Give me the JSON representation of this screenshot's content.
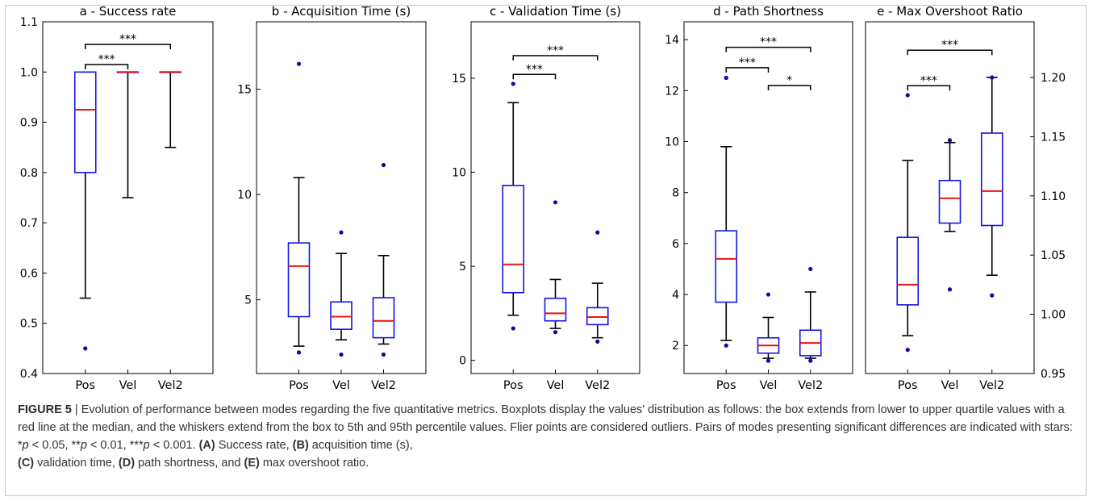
{
  "chart_data": [
    {
      "type": "box",
      "title": "a - Success rate",
      "categories": [
        "Pos",
        "Vel",
        "Vel2"
      ],
      "y_axis_side": "left",
      "ylim": [
        0.4,
        1.1
      ],
      "yticks": [
        0.4,
        0.5,
        0.6,
        0.7,
        0.8,
        0.9,
        1.0,
        1.1
      ],
      "ytick_labels": [
        "0.4",
        "0.5",
        "0.6",
        "0.7",
        "0.8",
        "0.9",
        "1.0",
        "1.1"
      ],
      "boxes": [
        {
          "whislo": 0.55,
          "q1": 0.8,
          "med": 0.925,
          "q3": 1.0,
          "whishi": 1.0,
          "fliers": [
            0.45
          ]
        },
        {
          "whislo": 0.75,
          "q1": 1.0,
          "med": 1.0,
          "q3": 1.0,
          "whishi": 1.0,
          "fliers": []
        },
        {
          "whislo": 0.85,
          "q1": 1.0,
          "med": 1.0,
          "q3": 1.0,
          "whishi": 1.0,
          "fliers": []
        }
      ],
      "significance": [
        {
          "from": 0,
          "to": 2,
          "y": 1.055,
          "label": "***"
        },
        {
          "from": 0,
          "to": 1,
          "y": 1.015,
          "label": "***"
        }
      ]
    },
    {
      "type": "box",
      "title": "b - Acquisition Time (s)",
      "categories": [
        "Pos",
        "Vel",
        "Vel2"
      ],
      "y_axis_side": "left",
      "ylim": [
        1.5,
        18.2
      ],
      "yticks": [
        5,
        10,
        15
      ],
      "ytick_labels": [
        "5",
        "10",
        "15"
      ],
      "boxes": [
        {
          "whislo": 2.8,
          "q1": 4.2,
          "med": 6.6,
          "q3": 7.7,
          "whishi": 10.8,
          "fliers": [
            16.2,
            2.5
          ]
        },
        {
          "whislo": 3.1,
          "q1": 3.6,
          "med": 4.2,
          "q3": 4.9,
          "whishi": 7.2,
          "fliers": [
            8.2,
            2.4
          ]
        },
        {
          "whislo": 2.9,
          "q1": 3.2,
          "med": 4.0,
          "q3": 5.1,
          "whishi": 7.1,
          "fliers": [
            11.4,
            2.4
          ]
        }
      ],
      "significance": []
    },
    {
      "type": "box",
      "title": "c - Validation Time (s)",
      "categories": [
        "Pos",
        "Vel",
        "Vel2"
      ],
      "y_axis_side": "left",
      "ylim": [
        -0.7,
        18.0
      ],
      "yticks": [
        0,
        5,
        10,
        15
      ],
      "ytick_labels": [
        "0",
        "5",
        "10",
        "15"
      ],
      "boxes": [
        {
          "whislo": 2.4,
          "q1": 3.6,
          "med": 5.1,
          "q3": 9.3,
          "whishi": 13.7,
          "fliers": [
            14.7,
            1.7
          ]
        },
        {
          "whislo": 1.7,
          "q1": 2.1,
          "med": 2.5,
          "q3": 3.3,
          "whishi": 4.3,
          "fliers": [
            8.4,
            1.5
          ]
        },
        {
          "whislo": 1.2,
          "q1": 1.9,
          "med": 2.3,
          "q3": 2.8,
          "whishi": 4.1,
          "fliers": [
            6.8,
            1.0
          ]
        }
      ],
      "significance": [
        {
          "from": 0,
          "to": 2,
          "y": 16.2,
          "label": "***"
        },
        {
          "from": 0,
          "to": 1,
          "y": 15.2,
          "label": "***"
        }
      ]
    },
    {
      "type": "box",
      "title": "d - Path Shortness",
      "categories": [
        "Pos",
        "Vel",
        "Vel2"
      ],
      "y_axis_side": "left",
      "ylim": [
        0.9,
        14.7
      ],
      "yticks": [
        2,
        4,
        6,
        8,
        10,
        12,
        14
      ],
      "ytick_labels": [
        "2",
        "4",
        "6",
        "8",
        "10",
        "12",
        "14"
      ],
      "boxes": [
        {
          "whislo": 2.2,
          "q1": 3.7,
          "med": 5.4,
          "q3": 6.5,
          "whishi": 9.8,
          "fliers": [
            12.5,
            2.0
          ]
        },
        {
          "whislo": 1.5,
          "q1": 1.7,
          "med": 2.0,
          "q3": 2.3,
          "whishi": 3.1,
          "fliers": [
            4.0,
            1.4
          ]
        },
        {
          "whislo": 1.5,
          "q1": 1.6,
          "med": 2.1,
          "q3": 2.6,
          "whishi": 4.1,
          "fliers": [
            5.0,
            1.4
          ]
        }
      ],
      "significance": [
        {
          "from": 0,
          "to": 2,
          "y": 13.7,
          "label": "***"
        },
        {
          "from": 0,
          "to": 1,
          "y": 12.9,
          "label": "***"
        },
        {
          "from": 1,
          "to": 2,
          "y": 12.2,
          "label": "*"
        }
      ]
    },
    {
      "type": "box",
      "title": "e - Max Overshoot Ratio",
      "categories": [
        "Pos",
        "Vel",
        "Vel2"
      ],
      "y_axis_side": "right",
      "ylim": [
        0.95,
        1.247
      ],
      "yticks": [
        0.95,
        1.0,
        1.05,
        1.1,
        1.15,
        1.2
      ],
      "ytick_labels": [
        "0.95",
        "1.00",
        "1.05",
        "1.10",
        "1.15",
        "1.20"
      ],
      "boxes": [
        {
          "whislo": 0.982,
          "q1": 1.008,
          "med": 1.025,
          "q3": 1.065,
          "whishi": 1.13,
          "fliers": [
            1.185,
            0.97
          ]
        },
        {
          "whislo": 1.07,
          "q1": 1.077,
          "med": 1.098,
          "q3": 1.113,
          "whishi": 1.145,
          "fliers": [
            1.147,
            1.021
          ]
        },
        {
          "whislo": 1.033,
          "q1": 1.075,
          "med": 1.104,
          "q3": 1.153,
          "whishi": 1.2,
          "fliers": [
            1.2,
            1.016
          ]
        }
      ],
      "significance": [
        {
          "from": 0,
          "to": 2,
          "y": 1.223,
          "label": "***"
        },
        {
          "from": 0,
          "to": 1,
          "y": 1.193,
          "label": "***"
        }
      ]
    }
  ],
  "caption": {
    "figure_label": "FIGURE 5",
    "separator": " | ",
    "intro": "Evolution of performance between modes regarding the five quantitative metrics. Boxplots display the values' distribution as follows: the box extends from lower to upper quartile values with a red line at the median, and the whiskers extend from the box to 5th and 95th percentile values. Flier points are considered outliers. Pairs of modes presenting significant differences are indicated with stars: *",
    "p": "p",
    "sig1": " < 0.05, **",
    "sig2": " < 0.01, ***",
    "sig3": " < 0.001. ",
    "a_label": "(A)",
    "a_text": " Success rate, ",
    "b_label": "(B)",
    "b_text": " acquisition time (s),",
    "c_label": "(C)",
    "c_text": " validation time, ",
    "d_label": "(D)",
    "d_text": " path shortness, and ",
    "e_label": "(E)",
    "e_text": " max overshoot ratio."
  },
  "colors": {
    "box": "#1414e6",
    "median": "#ee1111",
    "whisker": "#000000",
    "flier": "#0a0aa8",
    "axes": "#000000"
  }
}
